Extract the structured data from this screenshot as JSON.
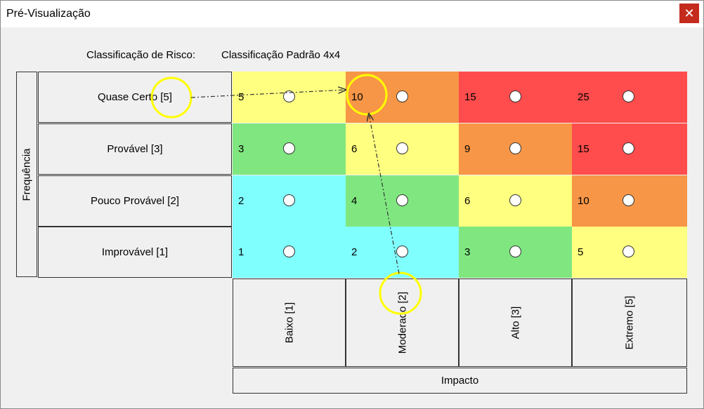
{
  "window": {
    "title": "Pré-Visualização",
    "close_glyph": "✕"
  },
  "classification": {
    "label": "Classificação de Risco:",
    "value": "Classificação Padrão 4x4"
  },
  "axes": {
    "frequency_label": "Frequência",
    "impact_label": "Impacto"
  },
  "rows": [
    {
      "label": "Quase Certo [5]",
      "cells": [
        {
          "value": "5",
          "color": "#ffff80"
        },
        {
          "value": "10",
          "color": "#f79646"
        },
        {
          "value": "15",
          "color": "#ff4c4c"
        },
        {
          "value": "25",
          "color": "#ff4c4c"
        }
      ]
    },
    {
      "label": "Provável [3]",
      "cells": [
        {
          "value": "3",
          "color": "#80e680"
        },
        {
          "value": "6",
          "color": "#ffff80"
        },
        {
          "value": "9",
          "color": "#f79646"
        },
        {
          "value": "15",
          "color": "#ff4c4c"
        }
      ]
    },
    {
      "label": "Pouco Provável [2]",
      "cells": [
        {
          "value": "2",
          "color": "#80ffff"
        },
        {
          "value": "4",
          "color": "#80e680"
        },
        {
          "value": "6",
          "color": "#ffff80"
        },
        {
          "value": "10",
          "color": "#f79646"
        }
      ]
    },
    {
      "label": "Improvável [1]",
      "cells": [
        {
          "value": "1",
          "color": "#80ffff"
        },
        {
          "value": "2",
          "color": "#80ffff"
        },
        {
          "value": "3",
          "color": "#80e680"
        },
        {
          "value": "5",
          "color": "#ffff80"
        }
      ]
    }
  ],
  "columns": [
    "Baixo [1]",
    "Moderado [2]",
    "Alto [3]",
    "Extremo [5]"
  ],
  "annotations": {
    "highlight_color": "#ffff00",
    "arrow_color": "#333333"
  }
}
